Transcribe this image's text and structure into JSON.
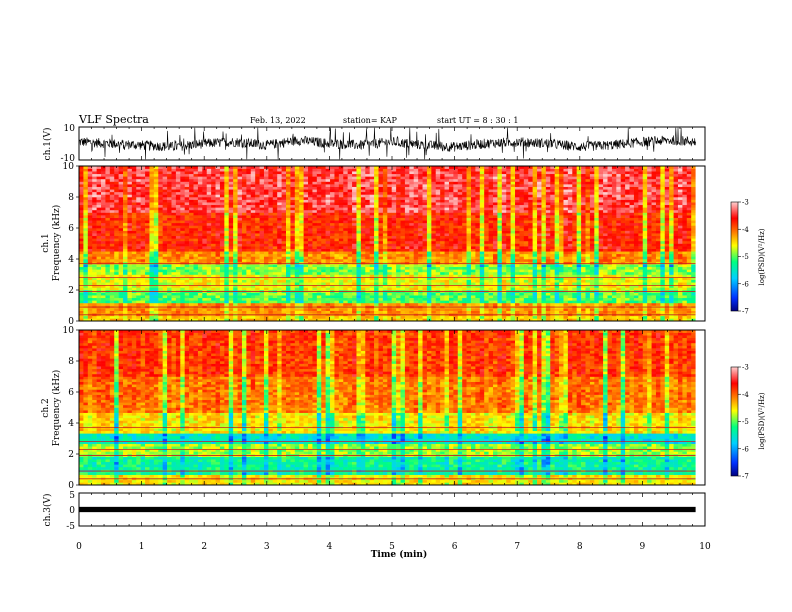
{
  "header": {
    "title": "VLF Spectra",
    "date": "Feb. 13, 2022",
    "station": "station= KAP",
    "start": "start  UT =   8  : 30 : 1"
  },
  "chart_data": [
    {
      "type": "line",
      "name": "ch1-waveform",
      "ylabel": "ch.1(V)",
      "ylim": [
        -10,
        10
      ],
      "yticks": [
        "10",
        "-10"
      ],
      "xlim": [
        0,
        10
      ],
      "envelope_x": [
        0,
        0.5,
        1,
        1.5,
        2,
        2.5,
        3,
        3.5,
        4,
        4.5,
        5,
        5.5,
        6,
        6.5,
        7,
        7.5,
        8,
        8.5,
        9,
        9.5,
        9.85
      ],
      "envelope_y": [
        1,
        0,
        -1,
        -2,
        0,
        1,
        -1,
        2,
        0,
        -1,
        1,
        -1,
        -2,
        0,
        1,
        0,
        -2,
        -1,
        1,
        2,
        1
      ]
    },
    {
      "type": "heatmap",
      "name": "ch1-spectrogram",
      "ylabel_line1": "ch.1",
      "ylabel_line2": "Frequency  (kHz)",
      "ylim": [
        0,
        10
      ],
      "yticks": [
        "0",
        "2",
        "4",
        "6",
        "8",
        "10"
      ],
      "xlim": [
        0,
        10
      ],
      "colorbar": {
        "label": "log(PSD)(V²/Hz)",
        "range": [
          -7,
          -3
        ],
        "ticks": [
          "-3",
          "-4",
          "-5",
          "-6",
          "-7"
        ],
        "colors": [
          "#000080",
          "#0030ff",
          "#00d0ff",
          "#00ff80",
          "#ffff00",
          "#ff7f00",
          "#ff0000",
          "#ffd0d0"
        ]
      },
      "freq_levels": [
        {
          "f0": 0.0,
          "f1": 0.4,
          "level": -4.5
        },
        {
          "f0": 0.4,
          "f1": 1.2,
          "level": -4.2
        },
        {
          "f0": 1.2,
          "f1": 2.0,
          "level": -5.1
        },
        {
          "f0": 2.0,
          "f1": 3.0,
          "level": -4.7
        },
        {
          "f0": 3.0,
          "f1": 3.6,
          "level": -5.0
        },
        {
          "f0": 3.6,
          "f1": 4.5,
          "level": -4.2
        },
        {
          "f0": 4.5,
          "f1": 7.0,
          "level": -3.7
        },
        {
          "f0": 7.0,
          "f1": 10.0,
          "level": -3.4
        }
      ]
    },
    {
      "type": "heatmap",
      "name": "ch2-spectrogram",
      "ylabel_line1": "ch.2",
      "ylabel_line2": "Frequency  (kHz)",
      "ylim": [
        0,
        10
      ],
      "yticks": [
        "0",
        "2",
        "4",
        "6",
        "8",
        "10"
      ],
      "xlim": [
        0,
        10
      ],
      "colorbar": {
        "label": "log(PSD)(V²/Hz)",
        "range": [
          -7,
          -3
        ],
        "ticks": [
          "-3",
          "-4",
          "-5",
          "-6",
          "-7"
        ],
        "colors": [
          "#000080",
          "#0030ff",
          "#00d0ff",
          "#00ff80",
          "#ffff00",
          "#ff7f00",
          "#ff0000",
          "#ffd0d0"
        ]
      },
      "freq_levels": [
        {
          "f0": 0.0,
          "f1": 0.6,
          "level": -4.6
        },
        {
          "f0": 0.6,
          "f1": 1.8,
          "level": -5.4
        },
        {
          "f0": 1.8,
          "f1": 2.6,
          "level": -4.9
        },
        {
          "f0": 2.6,
          "f1": 3.3,
          "level": -5.6
        },
        {
          "f0": 3.3,
          "f1": 4.6,
          "level": -4.6
        },
        {
          "f0": 4.6,
          "f1": 7.0,
          "level": -4.1
        },
        {
          "f0": 7.0,
          "f1": 10.0,
          "level": -3.8
        }
      ]
    },
    {
      "type": "line",
      "name": "ch3-waveform",
      "ylabel": "ch.3(V)",
      "ylim": [
        -5,
        5
      ],
      "yticks": [
        "5",
        "0",
        "-5"
      ],
      "xlim": [
        0,
        10
      ],
      "xlabel": "Time  (min)",
      "xticks": [
        "0",
        "1",
        "2",
        "3",
        "4",
        "5",
        "6",
        "7",
        "8",
        "9",
        "10"
      ],
      "data_end": 9.85,
      "band": [
        -0.8,
        0.8
      ]
    }
  ]
}
